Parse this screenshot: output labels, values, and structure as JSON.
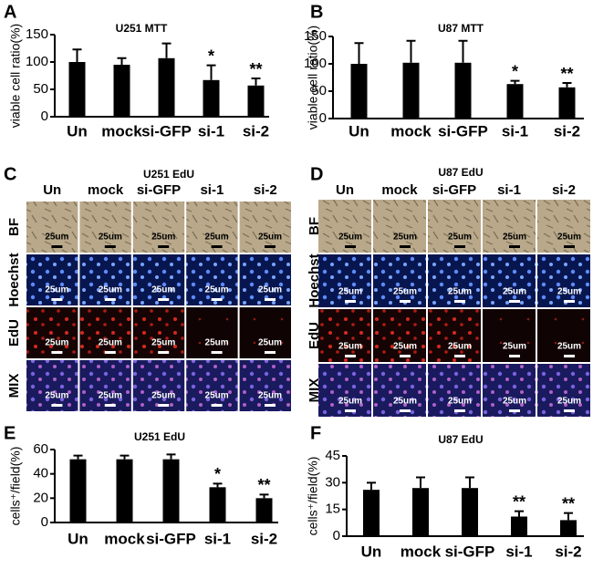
{
  "chart_data": [
    {
      "type": "bar",
      "panel": "A",
      "title": "U251  MTT",
      "ylabel": "viable cell ratio(%)",
      "color": "#000000",
      "categories": [
        "Un",
        "mock",
        "si-GFP",
        "si-1",
        "si-2"
      ],
      "values": [
        100,
        95,
        107,
        67,
        57
      ],
      "errors": [
        23,
        12,
        27,
        27,
        13
      ],
      "significance": [
        null,
        null,
        null,
        "*",
        "**"
      ],
      "ylim": [
        0,
        150
      ],
      "yticks": [
        0,
        50,
        100,
        150
      ]
    },
    {
      "type": "bar",
      "panel": "B",
      "title": "U87  MTT",
      "ylabel": "viable cell ratio(%)",
      "color": "#000000",
      "categories": [
        "Un",
        "mock",
        "si-GFP",
        "si-1",
        "si-2"
      ],
      "values": [
        100,
        102,
        102,
        63,
        57
      ],
      "errors": [
        38,
        40,
        40,
        6,
        8
      ],
      "significance": [
        null,
        null,
        null,
        "*",
        "**"
      ],
      "ylim": [
        0,
        150
      ],
      "yticks": [
        0,
        50,
        100,
        150
      ]
    },
    {
      "type": "bar",
      "panel": "E",
      "title": "U251  EdU",
      "ylabel": "cells⁺/field(%)",
      "color": "#000000",
      "categories": [
        "Un",
        "mock",
        "si-GFP",
        "si-1",
        "si-2"
      ],
      "values": [
        52,
        52,
        52,
        29,
        20
      ],
      "errors": [
        3,
        3,
        4,
        3,
        3
      ],
      "significance": [
        null,
        null,
        null,
        "*",
        "**"
      ],
      "ylim": [
        0,
        60
      ],
      "yticks": [
        0,
        20,
        40,
        60
      ]
    },
    {
      "type": "bar",
      "panel": "F",
      "title": "U87 EdU",
      "ylabel": "cells⁺/field(%)",
      "color": "#000000",
      "categories": [
        "Un",
        "mock",
        "si-GFP",
        "si-1",
        "si-2"
      ],
      "values": [
        26,
        27,
        27,
        11,
        9
      ],
      "errors": [
        4,
        6,
        6,
        3,
        4
      ],
      "significance": [
        null,
        null,
        null,
        "**",
        "**"
      ],
      "ylim": [
        0,
        45
      ],
      "yticks": [
        0,
        15,
        30,
        45
      ]
    }
  ],
  "image_panels": [
    {
      "panel": "C",
      "title": "U251  EdU",
      "columns": [
        "Un",
        "mock",
        "si-GFP",
        "si-1",
        "si-2"
      ],
      "rows": [
        "BF",
        "Hoechst",
        "EdU",
        "MIX"
      ],
      "scale_label": "25um"
    },
    {
      "panel": "D",
      "title": "U87  EdU",
      "columns": [
        "Un",
        "mock",
        "si-GFP",
        "si-1",
        "si-2"
      ],
      "rows": [
        "BF",
        "Hoechst",
        "EdU",
        "MIX"
      ],
      "scale_label": "25um"
    }
  ]
}
